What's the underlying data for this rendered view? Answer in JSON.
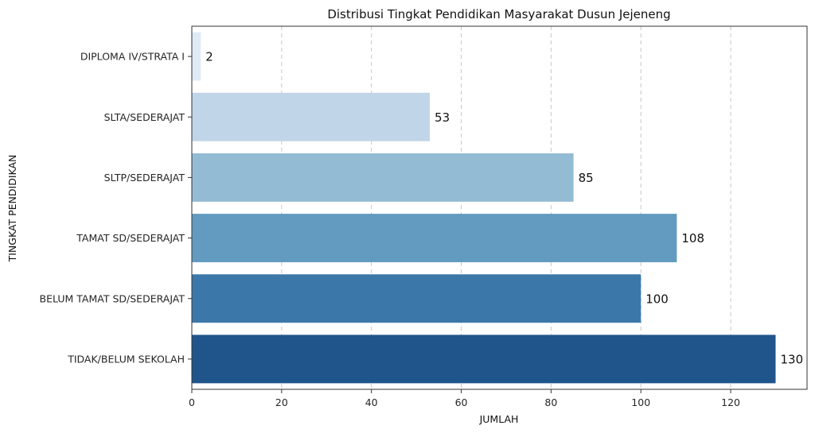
{
  "chart_data": {
    "type": "bar",
    "orientation": "horizontal",
    "title": "Distribusi Tingkat Pendidikan Masyarakat Dusun Jejeneng",
    "xlabel": "JUMLAH",
    "ylabel": "TINGKAT PENDIDIKAN",
    "categories": [
      "DIPLOMA IV/STRATA I",
      "SLTA/SEDERAJAT",
      "SLTP/SEDERAJAT",
      "TAMAT SD/SEDERAJAT",
      "BELUM TAMAT SD/SEDERAJAT",
      "TIDAK/BELUM SEKOLAH"
    ],
    "values": [
      2,
      53,
      85,
      108,
      100,
      130
    ],
    "colors": [
      "#dfeaf7",
      "#c0d5e8",
      "#94bbd4",
      "#629bbf",
      "#3b78a9",
      "#20558c"
    ],
    "data_labels": [
      "2",
      "53",
      "85",
      "108",
      "100",
      "130"
    ],
    "xlim": [
      0,
      137
    ],
    "xticks": [
      0,
      20,
      40,
      60,
      80,
      100,
      120
    ],
    "xtick_labels": [
      "0",
      "20",
      "40",
      "60",
      "80",
      "100",
      "120"
    ],
    "grid": "vertical dashed",
    "legend": "none"
  }
}
